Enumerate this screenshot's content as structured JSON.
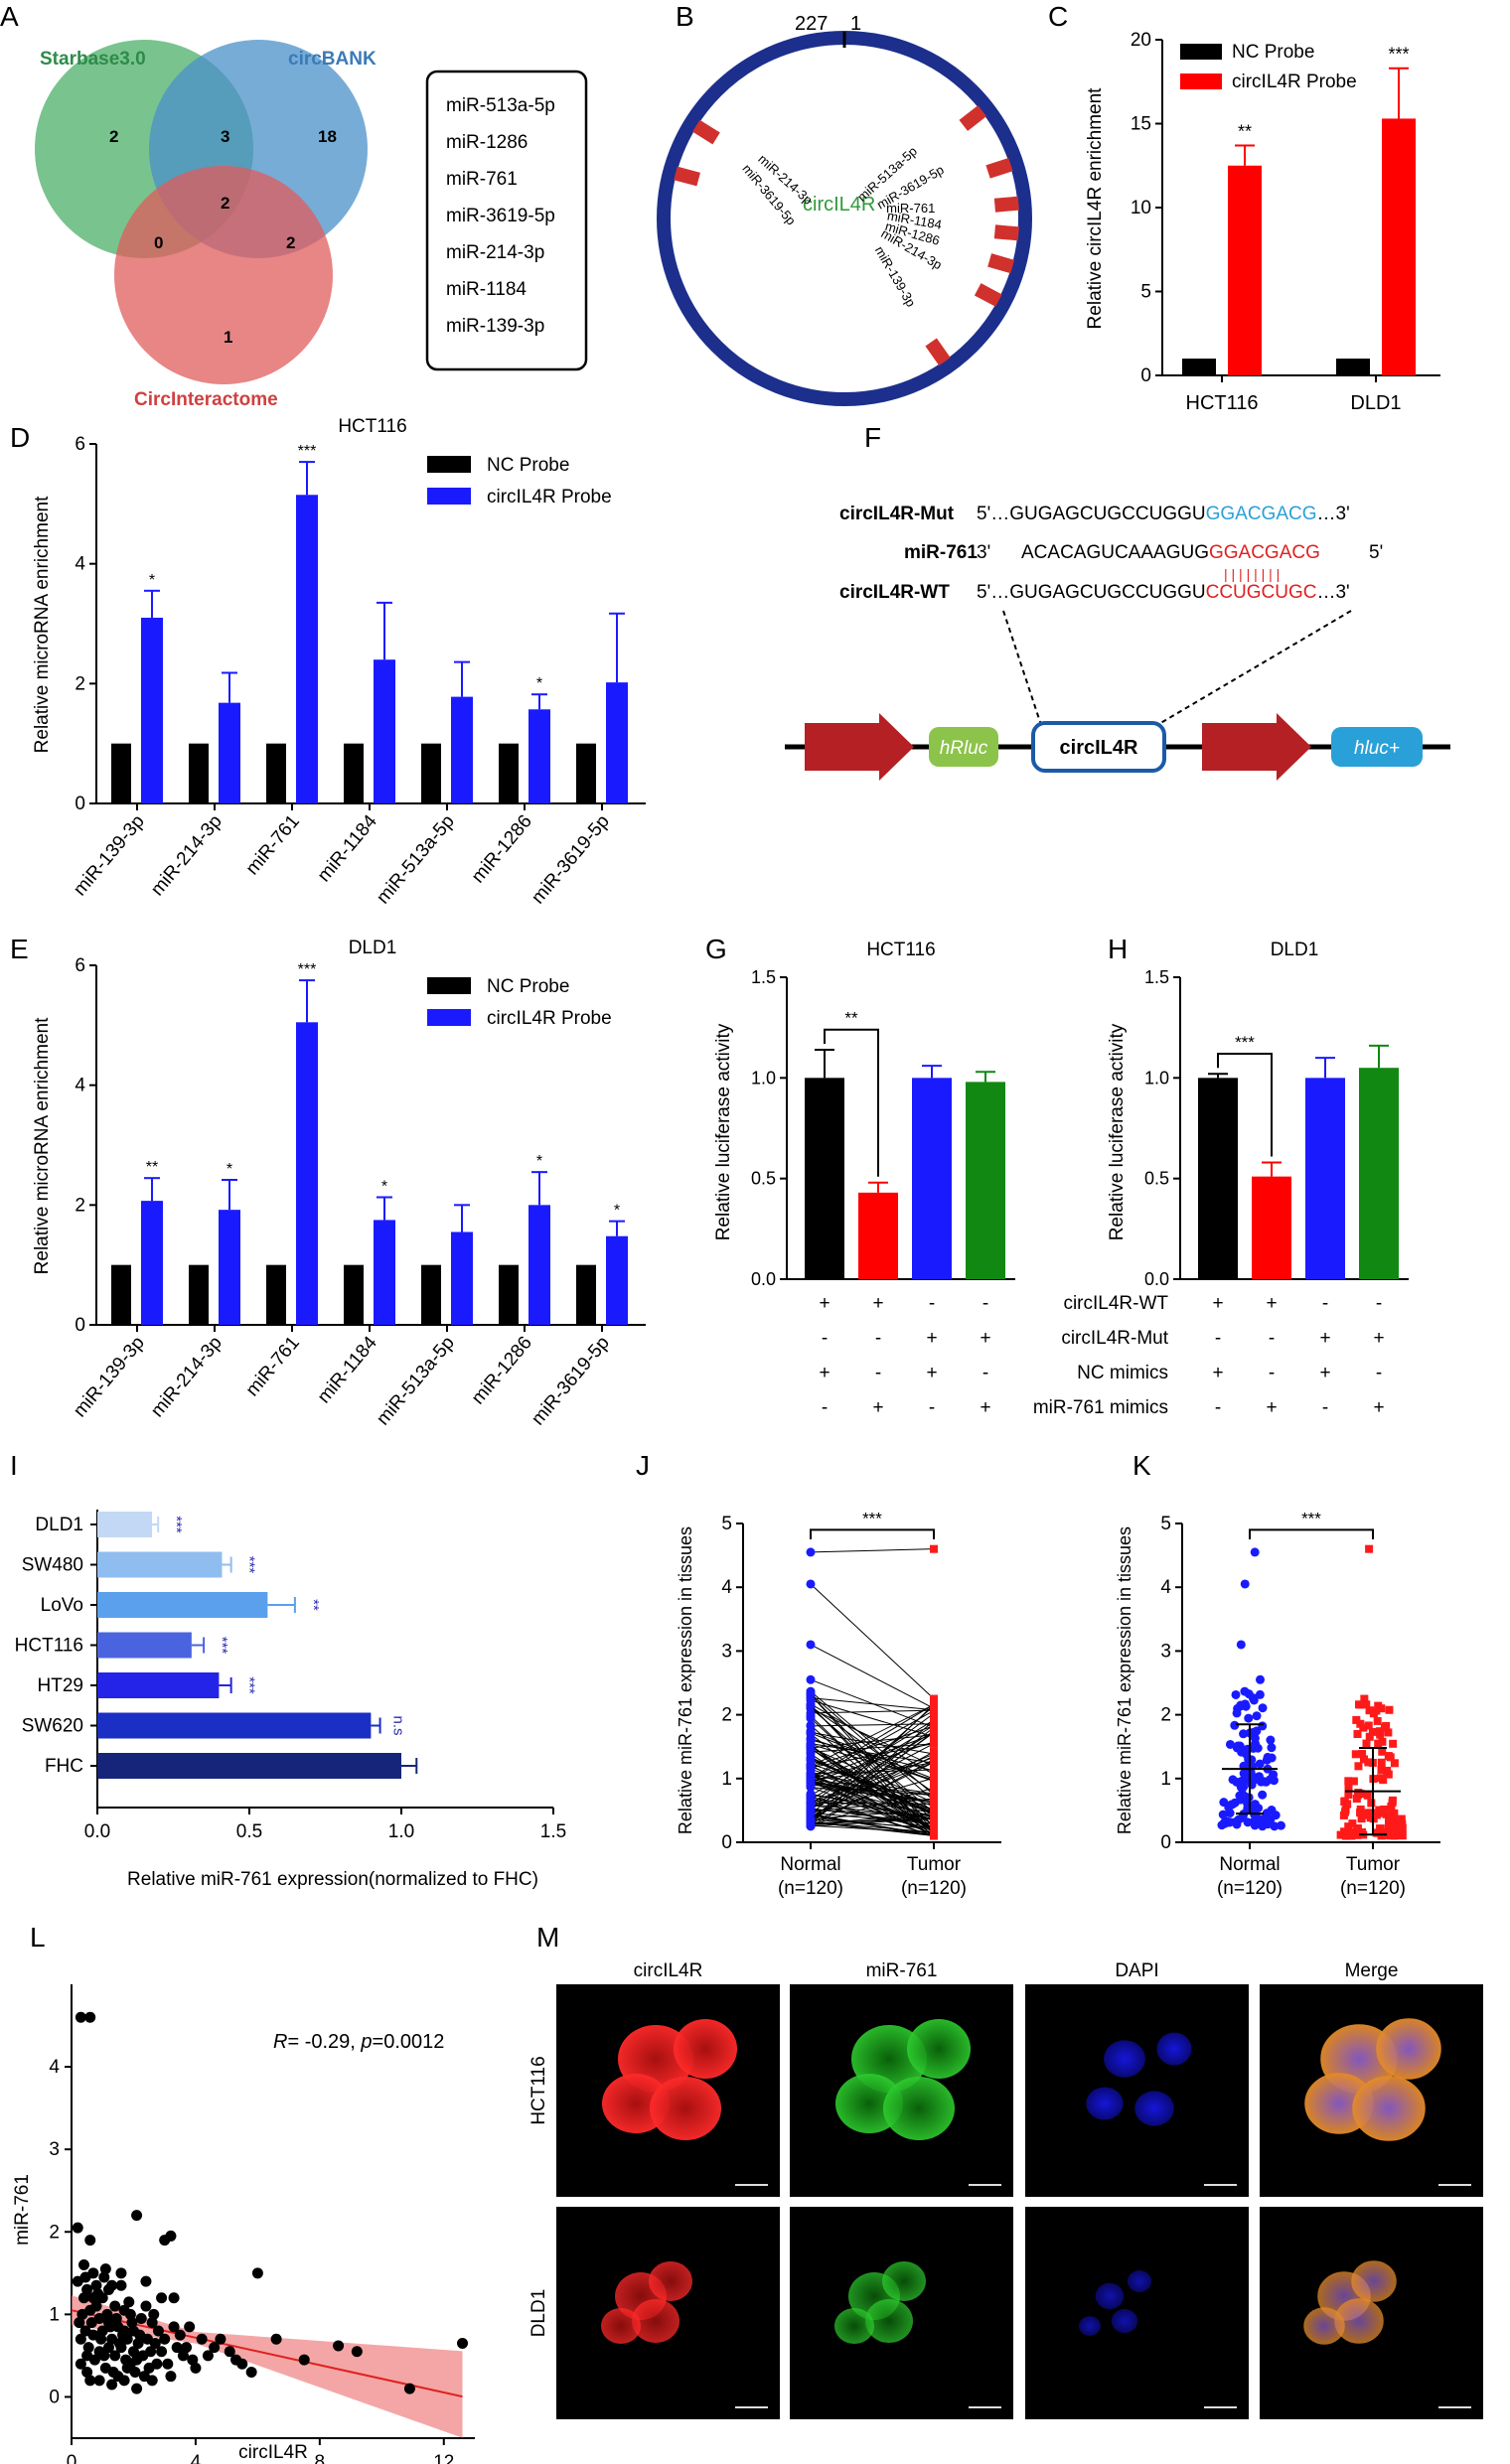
{
  "panel_letters": {
    "A": "A",
    "B": "B",
    "C": "C",
    "D": "D",
    "E": "E",
    "F": "F",
    "G": "G",
    "H": "H",
    "I": "I",
    "J": "J",
    "K": "K",
    "L": "L",
    "M": "M"
  },
  "colors": {
    "black": "#000000",
    "red": "#ff0000",
    "blue": "#1a1aff",
    "green": "#118811",
    "nc": "#000000",
    "venn_green": "#4caf6a",
    "venn_blue": "#4a90c8",
    "venn_red": "#e05c5c",
    "navy": "#1c2f8c",
    "strand_red": "#d0312d"
  },
  "venn": {
    "sets": [
      "Starbase3.0",
      "circBANK",
      "CircInteractome"
    ],
    "counts": {
      "starbase_only": "2",
      "both_sb_cb": "3",
      "circbank_only": "18",
      "center": "2",
      "sb_ci": "0",
      "cb_ci": "2",
      "ci_only": "1"
    },
    "mirna_list": [
      "miR-513a-5p",
      "miR-1286",
      "miR-761",
      "miR-3619-5p",
      "miR-214-3p",
      "miR-1184",
      "miR-139-3p"
    ]
  },
  "circle_map": {
    "top_labels": [
      "227",
      "1"
    ],
    "center_label": "circIL4R",
    "sites": [
      "miR-214-3p",
      "miR-3619-5p",
      "miR-513a-5p",
      "miR-3619-5p",
      "miR-761",
      "miR-1184",
      "miR-1286",
      "miR-214-3p",
      "miR-139-3p"
    ]
  },
  "sig": {
    "s1": "*",
    "s2": "**",
    "s3": "***",
    "ns": "n.s"
  },
  "chart_data": [
    {
      "panel": "C",
      "type": "bar",
      "categories": [
        "HCT116",
        "DLD1"
      ],
      "series": [
        {
          "name": "NC Probe",
          "values": [
            1,
            1
          ],
          "errors": [
            0,
            0
          ]
        },
        {
          "name": "circIL4R Probe",
          "values": [
            12.5,
            15.3
          ],
          "errors": [
            1.2,
            3.0
          ],
          "sig": [
            "**",
            "***"
          ]
        }
      ],
      "ylabel": "Relative circIL4R enrichment",
      "ylim": [
        0,
        20
      ],
      "yticks": [
        0,
        5,
        10,
        15,
        20
      ],
      "legend": "top-left"
    },
    {
      "panel": "D",
      "type": "bar",
      "title": "HCT116",
      "categories": [
        "miR-139-3p",
        "miR-214-3p",
        "miR-761",
        "miR-1184",
        "miR-513a-5p",
        "miR-1286",
        "miR-3619-5p"
      ],
      "series": [
        {
          "name": "NC Probe",
          "values": [
            1,
            1,
            1,
            1,
            1,
            1,
            1
          ]
        },
        {
          "name": "circIL4R Probe",
          "values": [
            3.1,
            1.68,
            5.15,
            2.4,
            1.78,
            1.57,
            2.02
          ],
          "errors": [
            0.45,
            0.5,
            0.55,
            0.95,
            0.58,
            0.25,
            1.15
          ],
          "sig": [
            "*",
            "",
            "***",
            "",
            "",
            "*",
            ""
          ]
        }
      ],
      "ylabel": "Relative microRNA enrichment",
      "ylim": [
        0,
        6
      ],
      "yticks": [
        0,
        2,
        4,
        6
      ],
      "legend": "top-right"
    },
    {
      "panel": "E",
      "type": "bar",
      "title": "DLD1",
      "categories": [
        "miR-139-3p",
        "miR-214-3p",
        "miR-761",
        "miR-1184",
        "miR-513a-5p",
        "miR-1286",
        "miR-3619-5p"
      ],
      "series": [
        {
          "name": "NC Probe",
          "values": [
            1,
            1,
            1,
            1,
            1,
            1,
            1
          ]
        },
        {
          "name": "circIL4R Probe",
          "values": [
            2.07,
            1.92,
            5.05,
            1.75,
            1.55,
            2.0,
            1.48
          ],
          "errors": [
            0.38,
            0.5,
            0.7,
            0.38,
            0.45,
            0.55,
            0.25
          ],
          "sig": [
            "**",
            "*",
            "***",
            "*",
            "",
            "*",
            "*"
          ]
        }
      ],
      "ylabel": "Relative microRNA enrichment",
      "ylim": [
        0,
        6
      ],
      "yticks": [
        0,
        2,
        4,
        6
      ],
      "legend": "top-right"
    },
    {
      "panel": "G",
      "type": "bar",
      "title": "HCT116",
      "values": [
        1.0,
        0.43,
        1.0,
        0.98
      ],
      "errors": [
        0.14,
        0.05,
        0.06,
        0.05
      ],
      "ylabel": "Relative luciferase activity",
      "ylim": [
        0,
        1.5
      ],
      "yticks": [
        "0.0",
        "0.5",
        "1.0",
        "1.5"
      ],
      "sig": "**"
    },
    {
      "panel": "H",
      "type": "bar",
      "title": "DLD1",
      "values": [
        1.0,
        0.51,
        1.0,
        1.05
      ],
      "errors": [
        0.02,
        0.07,
        0.1,
        0.11
      ],
      "ylabel": "Relative luciferase activity",
      "ylim": [
        0,
        1.5
      ],
      "yticks": [
        "0.0",
        "0.5",
        "1.0",
        "1.5"
      ],
      "sig": "***",
      "rows": [
        {
          "label": "circIL4R-WT",
          "signs": [
            "+",
            "+",
            "-",
            "-"
          ]
        },
        {
          "label": "circIL4R-Mut",
          "signs": [
            "-",
            "-",
            "+",
            "+"
          ]
        },
        {
          "label": "NC mimics",
          "signs": [
            "+",
            "-",
            "+",
            "-"
          ]
        },
        {
          "label": "miR-761 mimics",
          "signs": [
            "-",
            "+",
            "-",
            "+"
          ]
        }
      ]
    },
    {
      "panel": "I",
      "type": "bar",
      "categories": [
        "DLD1",
        "SW480",
        "LoVo",
        "HCT116",
        "HT29",
        "SW620",
        "FHC"
      ],
      "values": [
        0.18,
        0.41,
        0.56,
        0.31,
        0.4,
        0.9,
        1.0
      ],
      "errors": [
        0.02,
        0.03,
        0.09,
        0.04,
        0.04,
        0.03,
        0.05
      ],
      "sig": [
        "***",
        "***",
        "**",
        "***",
        "***",
        "n.s",
        ""
      ],
      "xlabel": "Relative miR-761 expression(normalized to FHC)",
      "xlim": [
        0,
        1.5
      ],
      "xticks": [
        "0.0",
        "0.5",
        "1.0",
        "1.5"
      ]
    },
    {
      "panel": "J",
      "type": "scatter",
      "ylabel": "Relative miR-761 expression in tissues",
      "ylim": [
        0,
        5
      ],
      "yticks": [
        0,
        1,
        2,
        3,
        4,
        5
      ],
      "categories": [
        "Normal",
        "Tumor"
      ],
      "ns": [
        "(n=120)",
        "(n=120)"
      ],
      "sig": "***"
    },
    {
      "panel": "K",
      "type": "scatter",
      "ylabel": "Relative miR-761 expression in tissues",
      "ylim": [
        0,
        5
      ],
      "yticks": [
        0,
        1,
        2,
        3,
        4,
        5
      ],
      "categories": [
        "Normal",
        "Tumor"
      ],
      "ns": [
        "(n=120)",
        "(n=120)"
      ],
      "sig": "***",
      "means": [
        1.15,
        0.8
      ],
      "sd": [
        0.7,
        0.68
      ]
    },
    {
      "panel": "L",
      "type": "scatter",
      "xlabel": "circIL4R",
      "ylabel": "miR-761",
      "xlim": [
        0,
        13
      ],
      "ylim": [
        -0.5,
        5
      ],
      "xticks": [
        0,
        4,
        8,
        12
      ],
      "yticks": [
        0,
        1,
        2,
        3,
        4
      ],
      "annotation_r": "R",
      "annotation_val": "= -0.29, ",
      "annotation_p": "p",
      "annotation_pval": "=0.0012",
      "fit": {
        "intercept": 1.05,
        "slope": -0.083
      },
      "points": [
        [
          0.3,
          4.6
        ],
        [
          0.6,
          4.6
        ],
        [
          0.2,
          2.05
        ],
        [
          0.6,
          1.9
        ],
        [
          1.1,
          1.55
        ],
        [
          1.3,
          1.35
        ],
        [
          1.6,
          1.35
        ],
        [
          2.1,
          2.2
        ],
        [
          3.0,
          1.9
        ],
        [
          3.2,
          1.95
        ],
        [
          3.3,
          1.2
        ],
        [
          6.0,
          1.5
        ],
        [
          6.6,
          0.7
        ],
        [
          7.5,
          0.45
        ],
        [
          8.6,
          0.62
        ],
        [
          9.2,
          0.55
        ],
        [
          10.9,
          0.1
        ],
        [
          12.6,
          0.65
        ],
        [
          2.4,
          1.1
        ],
        [
          2.6,
          0.9
        ],
        [
          3.8,
          0.85
        ],
        [
          4.2,
          0.7
        ],
        [
          4.6,
          0.6
        ],
        [
          5.1,
          0.55
        ],
        [
          5.5,
          0.4
        ],
        [
          0.4,
          1.6
        ],
        [
          0.5,
          1.3
        ],
        [
          0.7,
          1.5
        ],
        [
          0.8,
          1.1
        ],
        [
          0.9,
          0.95
        ],
        [
          1.0,
          0.8
        ],
        [
          1.2,
          0.6
        ],
        [
          1.4,
          0.5
        ],
        [
          1.5,
          0.85
        ],
        [
          1.7,
          1.05
        ],
        [
          1.8,
          0.7
        ],
        [
          1.9,
          0.4
        ],
        [
          2.0,
          0.55
        ],
        [
          2.2,
          0.75
        ],
        [
          2.3,
          0.5
        ],
        [
          2.5,
          0.35
        ],
        [
          2.7,
          0.65
        ],
        [
          2.8,
          0.8
        ],
        [
          2.9,
          0.55
        ],
        [
          3.1,
          0.4
        ],
        [
          3.4,
          0.6
        ],
        [
          3.5,
          0.75
        ],
        [
          3.6,
          0.5
        ],
        [
          3.9,
          0.45
        ],
        [
          4.0,
          0.35
        ],
        [
          0.35,
          1.0
        ],
        [
          0.45,
          0.8
        ],
        [
          0.55,
          0.6
        ],
        [
          0.65,
          0.9
        ],
        [
          0.75,
          0.45
        ],
        [
          0.85,
          1.25
        ],
        [
          0.95,
          0.7
        ],
        [
          1.05,
          0.5
        ],
        [
          1.15,
          1.0
        ],
        [
          1.25,
          0.85
        ],
        [
          1.35,
          0.3
        ],
        [
          1.45,
          0.95
        ],
        [
          1.55,
          0.65
        ],
        [
          1.65,
          0.75
        ],
        [
          1.75,
          0.45
        ],
        [
          1.85,
          1.15
        ],
        [
          1.95,
          0.9
        ],
        [
          2.05,
          0.3
        ],
        [
          2.15,
          0.65
        ],
        [
          2.25,
          0.95
        ],
        [
          2.35,
          0.25
        ],
        [
          2.45,
          0.7
        ],
        [
          2.55,
          0.55
        ],
        [
          2.65,
          1.0
        ],
        [
          2.75,
          0.4
        ],
        [
          0.25,
          0.9
        ],
        [
          0.3,
          0.7
        ],
        [
          0.4,
          1.2
        ],
        [
          0.5,
          0.5
        ],
        [
          0.6,
          1.05
        ],
        [
          0.7,
          0.75
        ],
        [
          0.8,
          1.35
        ],
        [
          0.9,
          0.55
        ],
        [
          1.0,
          1.2
        ],
        [
          1.1,
          0.35
        ],
        [
          1.2,
          0.9
        ],
        [
          1.3,
          0.7
        ],
        [
          1.4,
          1.1
        ],
        [
          1.5,
          0.25
        ],
        [
          1.6,
          0.6
        ],
        [
          1.7,
          0.8
        ],
        [
          1.8,
          0.35
        ],
        [
          1.9,
          1.0
        ],
        [
          2.0,
          0.8
        ],
        [
          2.1,
          0.45
        ],
        [
          3.0,
          0.7
        ],
        [
          3.3,
          0.85
        ],
        [
          3.7,
          0.6
        ],
        [
          4.4,
          0.5
        ],
        [
          4.8,
          0.7
        ],
        [
          5.3,
          0.45
        ],
        [
          5.8,
          0.3
        ],
        [
          0.5,
          0.3
        ],
        [
          0.9,
          0.2
        ],
        [
          1.3,
          0.15
        ],
        [
          1.7,
          0.2
        ],
        [
          2.1,
          0.1
        ],
        [
          2.6,
          0.2
        ],
        [
          3.2,
          0.25
        ],
        [
          0.2,
          1.4
        ],
        [
          0.45,
          1.45
        ],
        [
          0.7,
          1.2
        ],
        [
          1.05,
          1.45
        ],
        [
          1.2,
          1.3
        ],
        [
          0.3,
          0.4
        ],
        [
          0.6,
          0.2
        ],
        [
          1.6,
          1.5
        ],
        [
          2.4,
          1.4
        ],
        [
          2.9,
          1.2
        ]
      ]
    }
  ],
  "panelF": {
    "mut_label": "circIL4R-Mut",
    "mut_prefix": "5'…GUGAGCUGCCUGGU",
    "mut_site": "GGACGACG",
    "mut_suffix": "…3'",
    "mir_label": "miR-761",
    "mir_prefix": "3'",
    "mir_seq": "ACACAGUCAAAGUG",
    "mir_site": "GGACGACG",
    "mir_suffix": "5'",
    "wt_label": "circIL4R-WT",
    "wt_prefix": "5'…GUGAGCUGCCUGGU",
    "wt_site": "CCUGCUGC",
    "wt_suffix": "…3'",
    "bars": "| | | | | | | |",
    "hrluc": "hRluc",
    "insert": "circIL4R",
    "hluc": "hluc+"
  },
  "panelM": {
    "columns": [
      "circIL4R",
      "miR-761",
      "DAPI",
      "Merge"
    ],
    "rows": [
      "HCT116",
      "DLD1"
    ]
  }
}
